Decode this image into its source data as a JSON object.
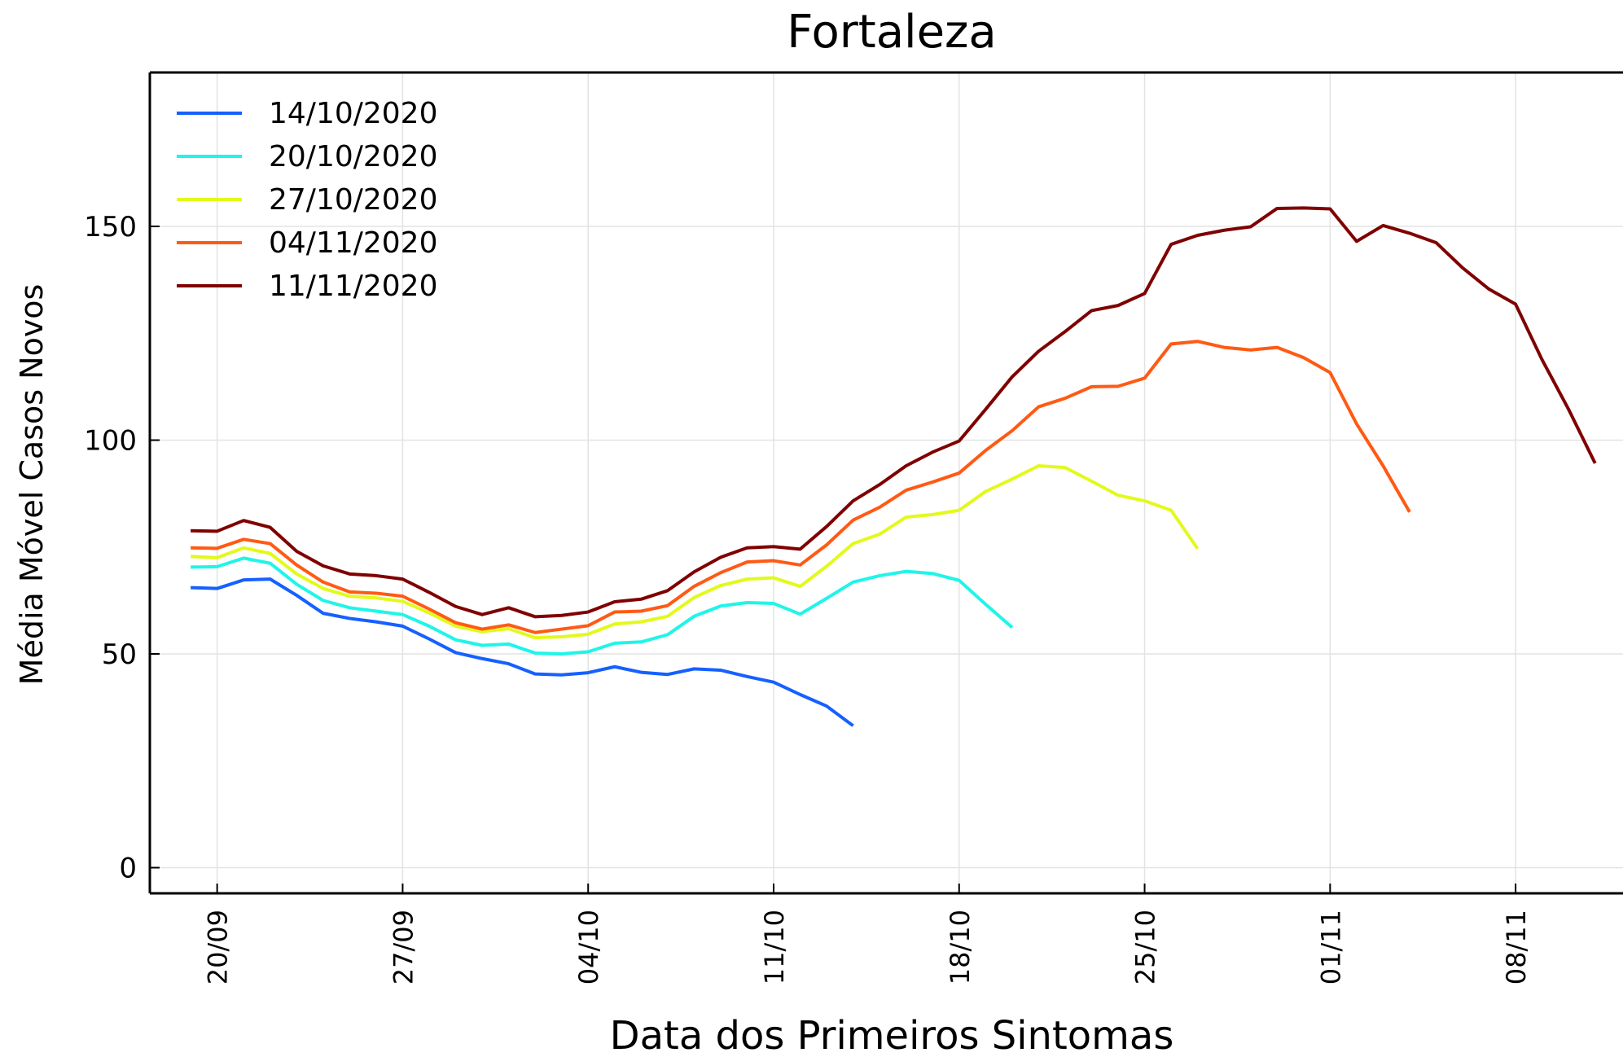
{
  "chart_data": {
    "type": "line",
    "title": "Fortaleza",
    "xlabel": "Data dos Primeiros Sintomas",
    "ylabel": "Média Móvel Casos Novos",
    "categories": [
      "19/09",
      "20/09",
      "21/09",
      "22/09",
      "23/09",
      "24/09",
      "25/09",
      "26/09",
      "27/09",
      "28/09",
      "29/09",
      "30/09",
      "01/10",
      "02/10",
      "03/10",
      "04/10",
      "05/10",
      "06/10",
      "07/10",
      "08/10",
      "09/10",
      "10/10",
      "11/10",
      "12/10",
      "13/10",
      "14/10",
      "15/10",
      "16/10",
      "17/10",
      "18/10",
      "19/10",
      "20/10",
      "21/10",
      "22/10",
      "23/10",
      "24/10",
      "25/10",
      "26/10",
      "27/10",
      "28/10",
      "29/10",
      "30/10",
      "31/10",
      "01/11",
      "02/11",
      "03/11",
      "04/11",
      "05/11",
      "06/11",
      "07/11",
      "08/11",
      "09/11",
      "10/11",
      "11/11"
    ],
    "xticks": [
      "20/09",
      "27/09",
      "04/10",
      "11/10",
      "18/10",
      "25/10",
      "01/11",
      "08/11"
    ],
    "ylim": [
      -6,
      186
    ],
    "yticks": [
      0,
      50,
      100,
      150
    ],
    "grid": true,
    "legend": "upper left",
    "series": [
      {
        "name": "14/10/2020",
        "color": "#1560ff",
        "values": [
          65.5,
          65.3,
          67.3,
          67.5,
          63.7,
          59.5,
          58.3,
          57.5,
          56.5,
          53.5,
          50.3,
          48.9,
          47.7,
          45.3,
          45.1,
          45.6,
          47.0,
          45.7,
          45.2,
          46.5,
          46.2,
          44.7,
          43.4,
          40.5,
          37.8,
          33.2,
          null,
          null,
          null,
          null,
          null,
          null,
          null,
          null,
          null,
          null,
          null,
          null,
          null,
          null,
          null,
          null,
          null,
          null,
          null,
          null,
          null,
          null,
          null,
          null,
          null,
          null,
          null,
          null
        ]
      },
      {
        "name": "20/10/2020",
        "color": "#1ff5e8",
        "values": [
          70.3,
          70.4,
          72.4,
          71.2,
          66.3,
          62.5,
          60.8,
          60.0,
          59.2,
          56.5,
          53.3,
          52.0,
          52.3,
          50.2,
          50.0,
          50.5,
          52.5,
          52.8,
          54.5,
          58.8,
          61.2,
          62.0,
          61.8,
          59.3,
          63.0,
          66.8,
          68.3,
          69.3,
          68.8,
          67.2,
          61.6,
          56.2,
          null,
          null,
          null,
          null,
          null,
          null,
          null,
          null,
          null,
          null,
          null,
          null,
          null,
          null,
          null,
          null,
          null,
          null,
          null,
          null,
          null,
          null
        ]
      },
      {
        "name": "27/10/2020",
        "color": "#e2fa1a",
        "values": [
          72.8,
          72.5,
          74.8,
          73.5,
          68.7,
          65.3,
          63.5,
          63.1,
          62.3,
          59.6,
          56.5,
          55.2,
          55.9,
          53.8,
          54.0,
          54.6,
          57.0,
          57.5,
          58.8,
          63.2,
          66.0,
          67.5,
          67.8,
          65.8,
          70.5,
          75.8,
          78.0,
          82.0,
          82.6,
          83.6,
          88.0,
          90.9,
          94.0,
          93.6,
          90.4,
          87.1,
          85.8,
          83.6,
          74.6,
          null,
          null,
          null,
          null,
          null,
          null,
          null,
          null,
          null,
          null,
          null,
          null,
          null,
          null,
          null
        ]
      },
      {
        "name": "04/11/2020",
        "color": "#ff5a14",
        "values": [
          74.8,
          74.7,
          76.8,
          75.8,
          70.8,
          66.8,
          64.5,
          64.2,
          63.5,
          60.5,
          57.3,
          55.8,
          56.8,
          55.0,
          55.8,
          56.6,
          59.8,
          60.0,
          61.3,
          65.8,
          69.0,
          71.5,
          71.8,
          70.8,
          75.5,
          81.3,
          84.3,
          88.3,
          90.2,
          92.3,
          97.6,
          102.2,
          107.8,
          109.8,
          112.5,
          112.6,
          114.5,
          122.5,
          123.1,
          121.7,
          121.1,
          121.7,
          119.3,
          115.8,
          103.8,
          94.0,
          83.2,
          null,
          null,
          null,
          null,
          null,
          null,
          null
        ]
      },
      {
        "name": "11/11/2020",
        "color": "#800000",
        "values": [
          78.8,
          78.7,
          81.2,
          79.6,
          74.0,
          70.6,
          68.7,
          68.3,
          67.5,
          64.4,
          61.1,
          59.2,
          60.8,
          58.7,
          59.0,
          59.8,
          62.2,
          62.8,
          64.8,
          69.2,
          72.6,
          74.8,
          75.1,
          74.5,
          79.8,
          85.8,
          89.6,
          94.0,
          97.2,
          99.8,
          107.2,
          114.8,
          120.8,
          125.4,
          130.3,
          131.5,
          134.3,
          145.8,
          147.9,
          149.1,
          149.9,
          154.2,
          154.3,
          154.1,
          146.5,
          150.2,
          148.4,
          146.2,
          140.3,
          135.3,
          131.8,
          118.8,
          107.2,
          94.6
        ]
      }
    ]
  }
}
